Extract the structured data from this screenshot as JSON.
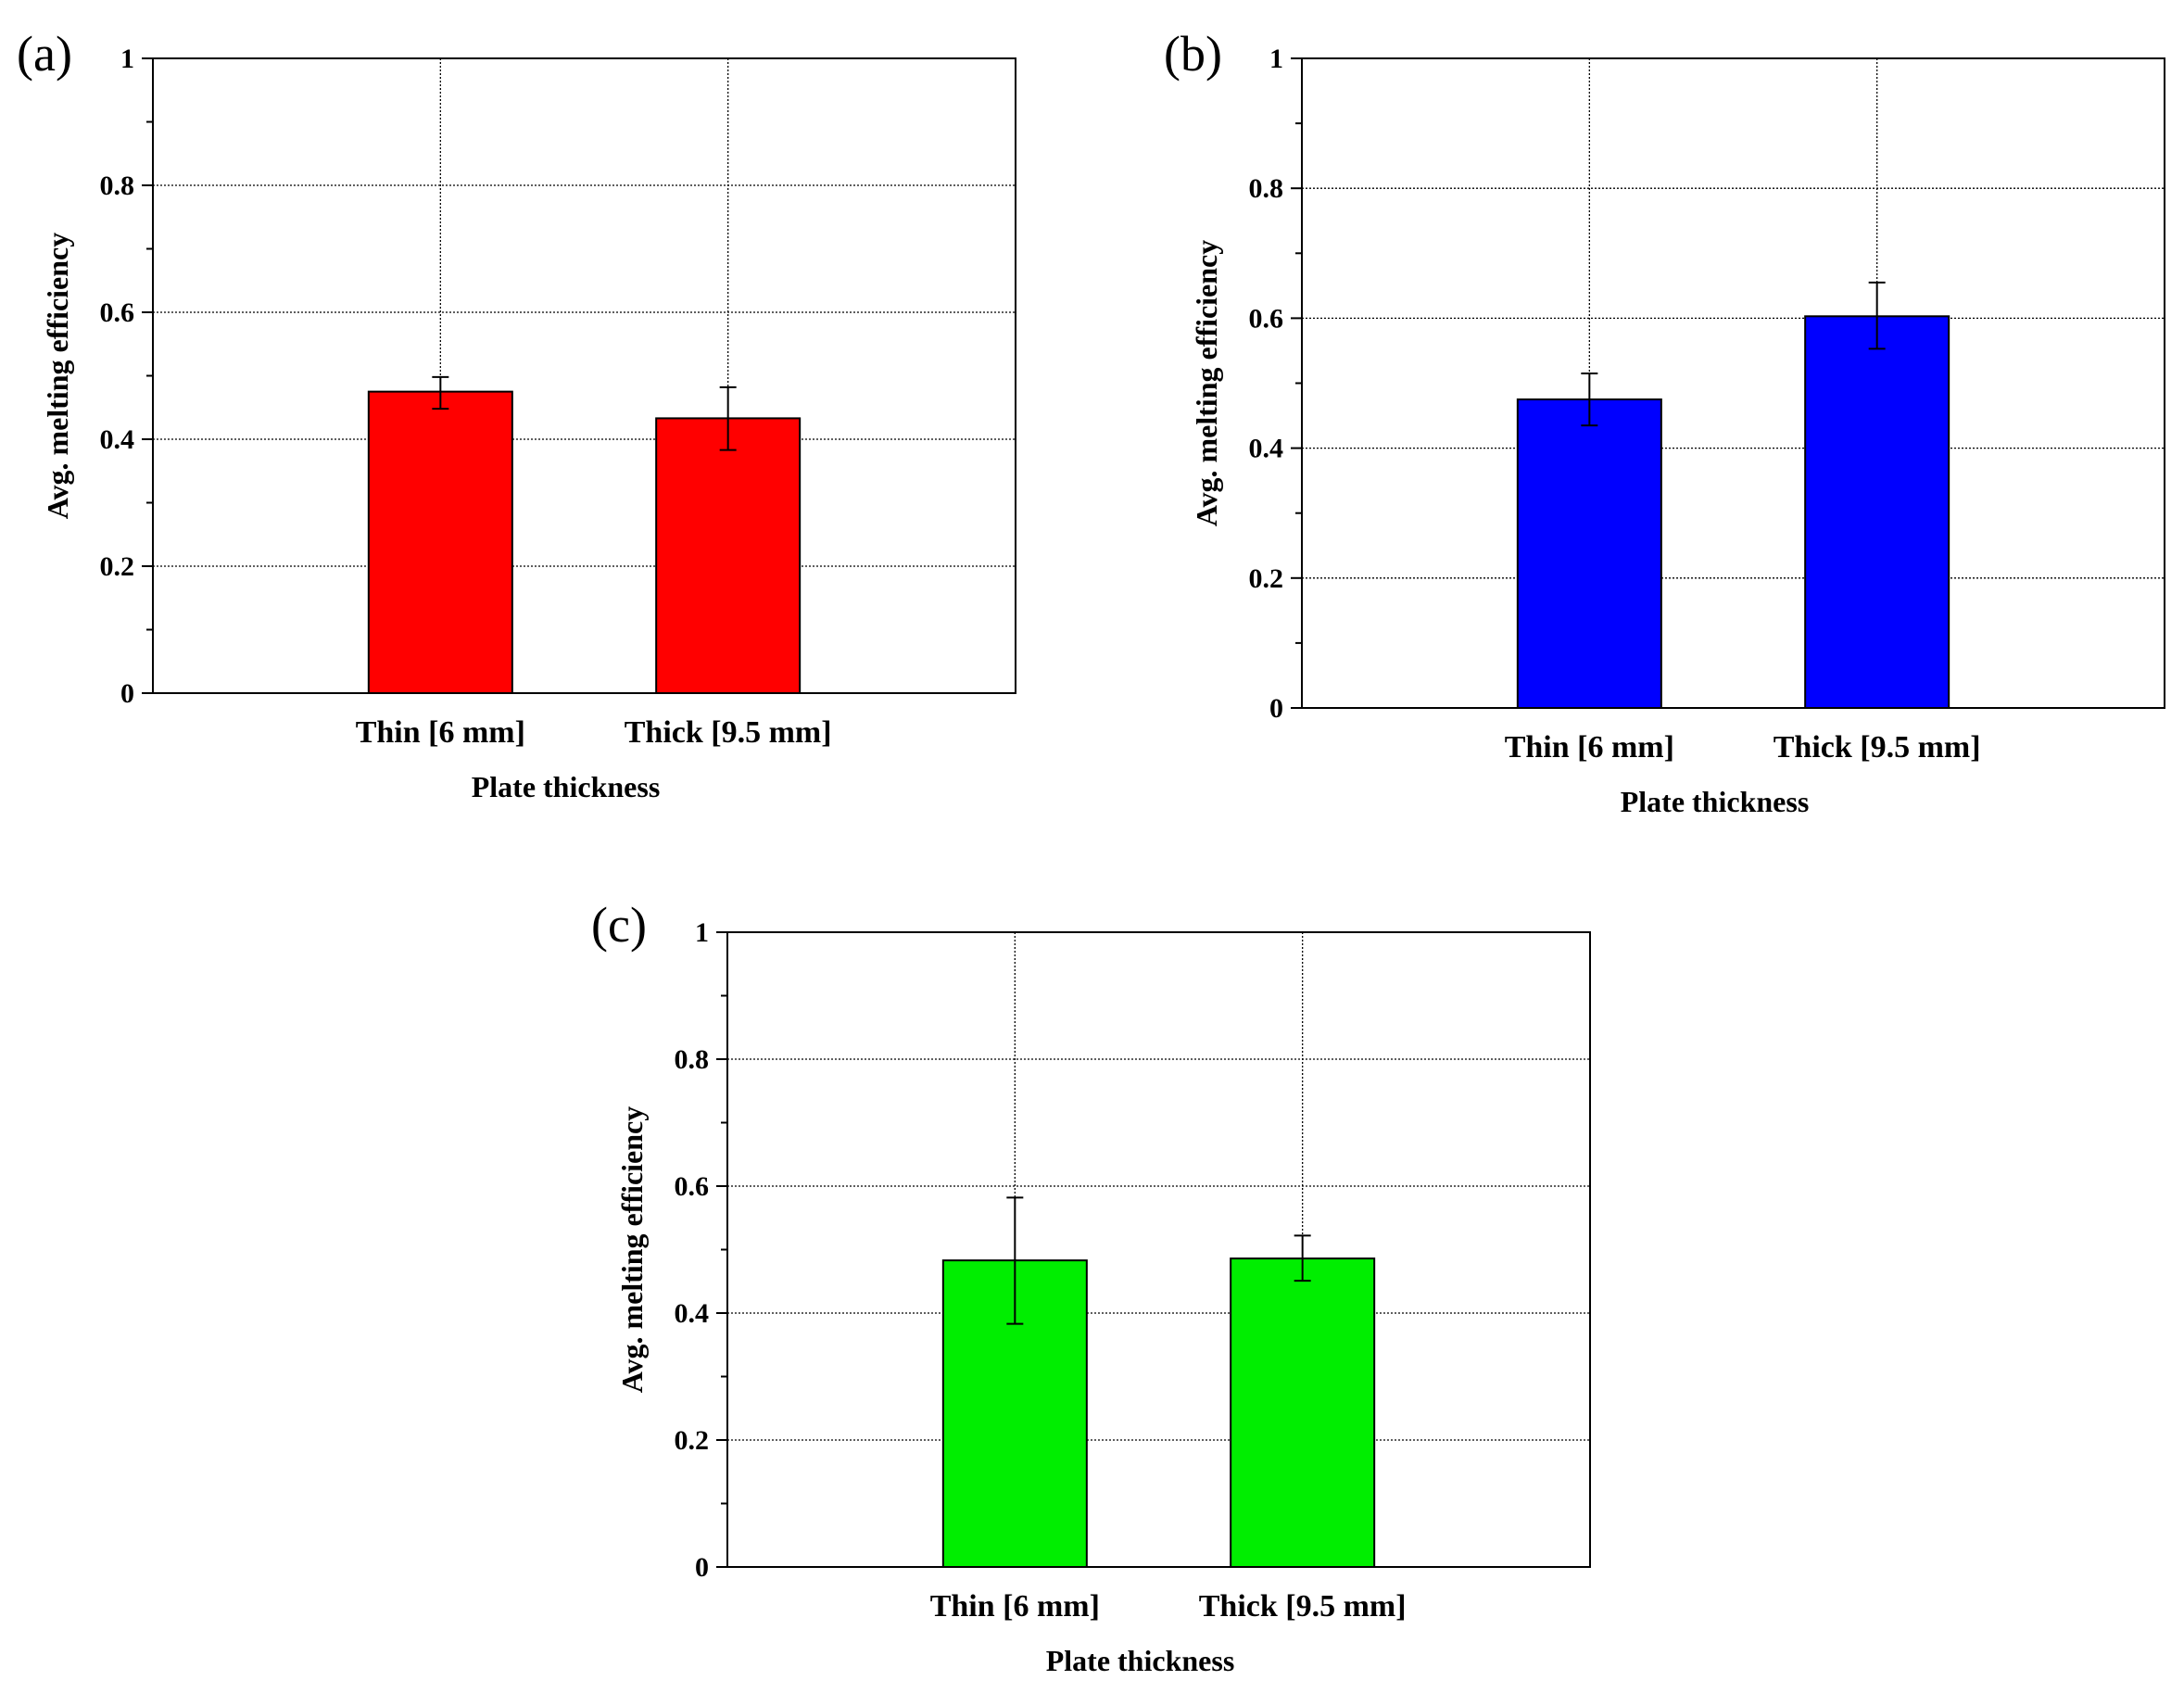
{
  "chart_data": [
    {
      "panel_label": "(a)",
      "type": "bar",
      "categories": [
        "Thin [6 mm]",
        "Thick [9.5 mm]"
      ],
      "values": [
        0.475,
        0.433
      ],
      "error_upper": [
        0.498,
        0.482
      ],
      "error_lower": [
        0.448,
        0.383
      ],
      "xlabel": "Plate thickness",
      "ylabel": "Avg. melting efficiency",
      "ylim": [
        0,
        1
      ],
      "yticks": [
        0,
        0.2,
        0.4,
        0.6,
        0.8,
        1
      ],
      "ytick_labels": [
        "0",
        "0.2",
        "0.4",
        "0.6",
        "0.8",
        "1"
      ],
      "grid": true,
      "bar_color": "#ff0000"
    },
    {
      "panel_label": "(b)",
      "type": "bar",
      "categories": [
        "Thin [6 mm]",
        "Thick [9.5 mm]"
      ],
      "values": [
        0.475,
        0.603
      ],
      "error_upper": [
        0.515,
        0.655
      ],
      "error_lower": [
        0.435,
        0.553
      ],
      "xlabel": "Plate thickness",
      "ylabel": "Avg. melting efficiency",
      "ylim": [
        0,
        1
      ],
      "yticks": [
        0,
        0.2,
        0.4,
        0.6,
        0.8,
        1
      ],
      "ytick_labels": [
        "0",
        "0.2",
        "0.4",
        "0.6",
        "0.8",
        "1"
      ],
      "grid": true,
      "bar_color": "#0000ff"
    },
    {
      "panel_label": "(c)",
      "type": "bar",
      "categories": [
        "Thin [6 mm]",
        "Thick [9.5 mm]"
      ],
      "values": [
        0.483,
        0.486
      ],
      "error_upper": [
        0.582,
        0.522
      ],
      "error_lower": [
        0.383,
        0.451
      ],
      "xlabel": "Plate thickness",
      "ylabel": "Avg. melting efficiency",
      "ylim": [
        0,
        1
      ],
      "yticks": [
        0,
        0.2,
        0.4,
        0.6,
        0.8,
        1
      ],
      "ytick_labels": [
        "0",
        "0.2",
        "0.4",
        "0.6",
        "0.8",
        "1"
      ],
      "grid": true,
      "bar_color": "#00ee00"
    }
  ]
}
